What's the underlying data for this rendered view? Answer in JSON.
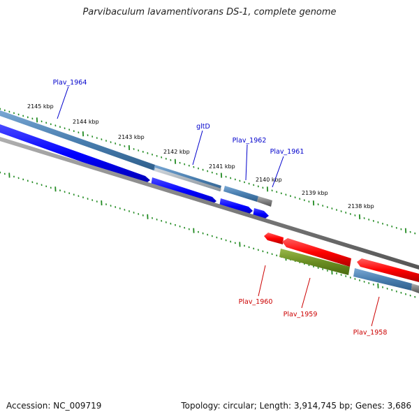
{
  "title": "Parvibaculum lavamentivorans DS-1, complete genome",
  "footer": {
    "accession": "Accession: NC_009719",
    "summary": "Topology: circular; Length: 3,914,745 bp; Genes: 3,686"
  },
  "colors": {
    "forward_label": "#0000cc",
    "reverse_label": "#cc0000",
    "forward_cds": "#0000ff",
    "reverse_cds": "#ff0000",
    "gene_bar": "#4a7fb0",
    "rna_gene": "#6b8e23",
    "backbone": "#808080",
    "ticks": "#228b22"
  },
  "position_labels": [
    "2145 kbp",
    "2144 kbp",
    "2143 kbp",
    "2142 kbp",
    "2141 kbp",
    "2140 kbp",
    "2139 kbp",
    "2138 kbp"
  ],
  "gene_labels": {
    "forward": [
      "Plav_1964",
      "gltD",
      "Plav_1962",
      "Plav_1961"
    ],
    "reverse": [
      "Plav_1960",
      "Plav_1959",
      "Plav_1958"
    ]
  }
}
